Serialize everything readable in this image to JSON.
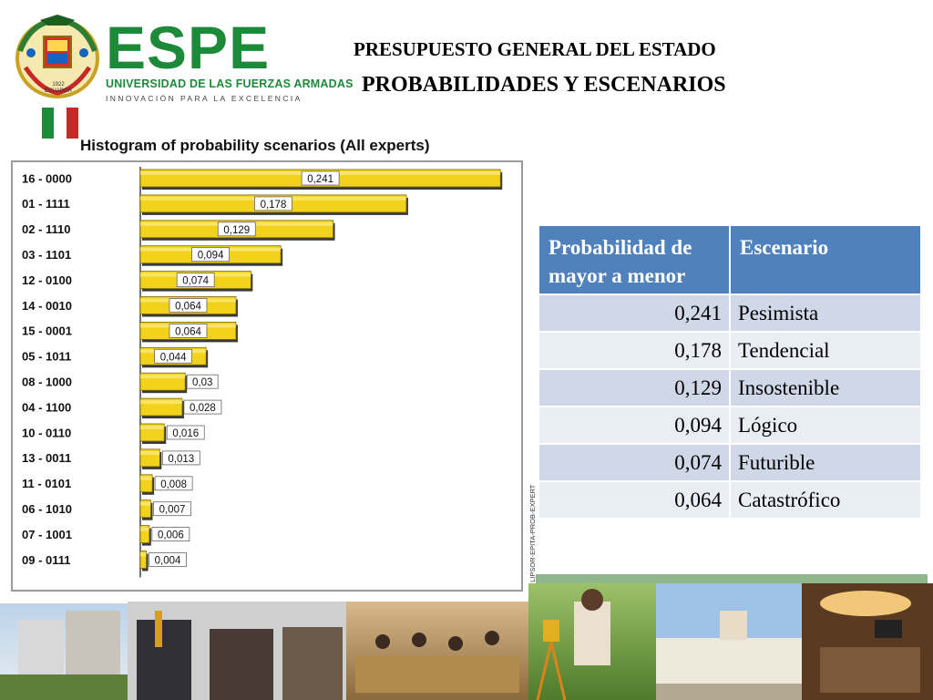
{
  "header": {
    "logo_emblem_year": "1922\nECUADOR",
    "logo_word": "ESPE",
    "logo_university": "UNIVERSIDAD DE LAS FUERZAS ARMADAS",
    "logo_slogan": "INNOVACIÓN PARA LA EXCELENCIA",
    "title_line1": "PRESUPUESTO GENERAL DEL ESTADO",
    "title_line2": "PROBABILIDADES Y ESCENARIOS"
  },
  "chart_data": {
    "type": "bar",
    "orientation": "horizontal",
    "title": "Histogram of probability scenarios (All experts)",
    "categories": [
      "16 - 0000",
      "01 - 1111",
      "02 - 1110",
      "03 - 1101",
      "12 - 0100",
      "14 - 0010",
      "15 - 0001",
      "05 - 1011",
      "08 - 1000",
      "04 - 1100",
      "10 - 0110",
      "13 - 0011",
      "11 - 0101",
      "06 - 1010",
      "07 - 1001",
      "09 - 0111"
    ],
    "values": [
      0.241,
      0.178,
      0.129,
      0.094,
      0.074,
      0.064,
      0.064,
      0.044,
      0.03,
      0.028,
      0.016,
      0.013,
      0.008,
      0.007,
      0.006,
      0.004
    ],
    "labels": [
      "0,241",
      "0,178",
      "0,129",
      "0,094",
      "0,074",
      "0,064",
      "0,064",
      "0,044",
      "0,03",
      "0,028",
      "0,016",
      "0,013",
      "0,008",
      "0,007",
      "0,006",
      "0,004"
    ],
    "xlabel": "",
    "ylabel": "",
    "xlim": [
      0,
      0.25
    ],
    "grid": false,
    "legend": "none",
    "bar_color": "#f2d21b",
    "side_credit": "© LIPSOR-EPITA-PROB-EXPERT"
  },
  "table": {
    "headers": [
      "Probabilidad de mayor a menor",
      "Escenario"
    ],
    "rows": [
      {
        "prob": "0,241",
        "scenario": "Pesimista"
      },
      {
        "prob": "0,178",
        "scenario": "Tendencial"
      },
      {
        "prob": "0,129",
        "scenario": "Insostenible"
      },
      {
        "prob": "0,094",
        "scenario": "Lógico"
      },
      {
        "prob": "0,074",
        "scenario": "Futurible"
      },
      {
        "prob": "0,064",
        "scenario": "Catastrófico"
      }
    ]
  },
  "colors": {
    "brand_green": "#1d8a3a",
    "table_header": "#4f81bd",
    "table_row_dark": "#d0d8e8",
    "table_row_light": "#e9edf4"
  }
}
